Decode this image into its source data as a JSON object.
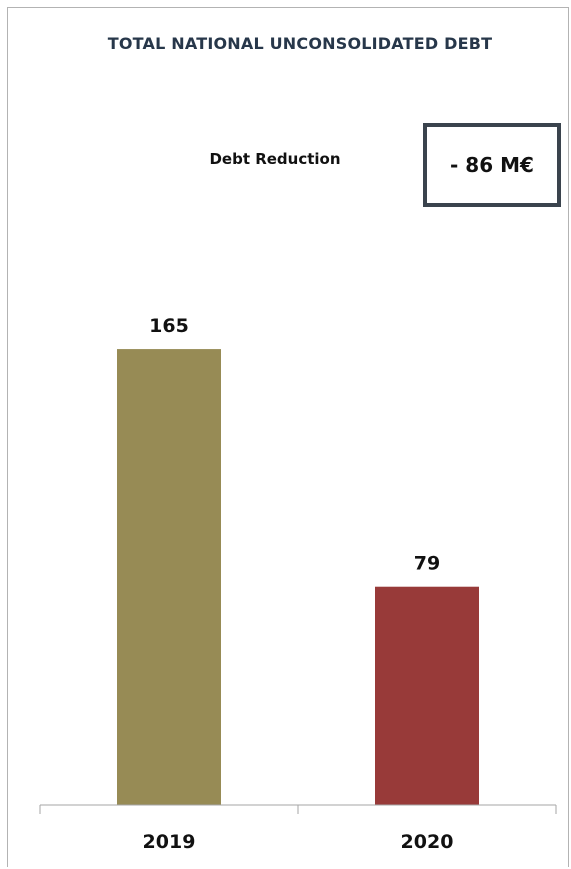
{
  "chart_data": {
    "type": "bar",
    "title": "TOTAL NATIONAL UNCONSOLIDATED DEBT",
    "subtitle": "Debt Reduction",
    "callout": "- 86 M€",
    "categories": [
      "2019",
      "2020"
    ],
    "values": [
      165,
      79
    ],
    "colors": [
      "#978b55",
      "#983a39"
    ],
    "xlabel": "",
    "ylabel": "",
    "ylim": [
      0,
      190
    ],
    "grid": false
  }
}
